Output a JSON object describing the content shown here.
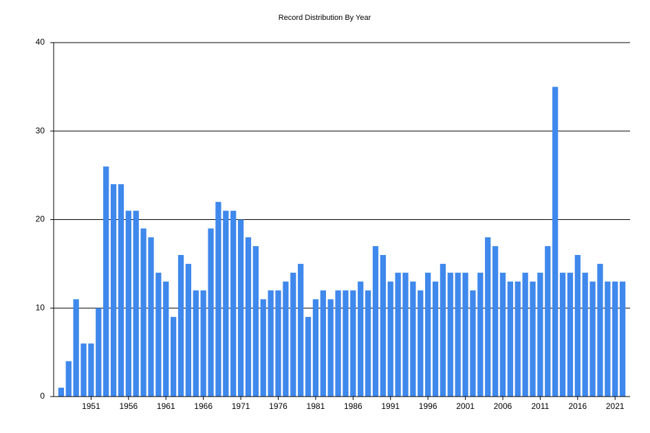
{
  "chart_data": {
    "type": "bar",
    "title": "Record Distribution By Year",
    "x": [
      1947,
      1948,
      1949,
      1950,
      1951,
      1952,
      1953,
      1954,
      1955,
      1956,
      1957,
      1958,
      1959,
      1960,
      1961,
      1962,
      1963,
      1964,
      1965,
      1966,
      1967,
      1968,
      1969,
      1970,
      1971,
      1972,
      1973,
      1974,
      1975,
      1976,
      1977,
      1978,
      1979,
      1980,
      1981,
      1982,
      1983,
      1984,
      1985,
      1986,
      1987,
      1988,
      1989,
      1990,
      1991,
      1992,
      1993,
      1994,
      1995,
      1996,
      1997,
      1998,
      1999,
      2000,
      2001,
      2002,
      2003,
      2004,
      2005,
      2006,
      2007,
      2008,
      2009,
      2010,
      2011,
      2012,
      2013,
      2014,
      2015,
      2016,
      2017,
      2018,
      2019,
      2020,
      2021,
      2022
    ],
    "values": [
      1,
      4,
      11,
      6,
      6,
      10,
      26,
      24,
      24,
      21,
      21,
      19,
      18,
      14,
      13,
      9,
      16,
      15,
      12,
      12,
      19,
      22,
      21,
      21,
      20,
      18,
      17,
      11,
      12,
      12,
      13,
      14,
      15,
      9,
      11,
      12,
      11,
      12,
      12,
      12,
      13,
      12,
      17,
      16,
      13,
      14,
      14,
      13,
      12,
      14,
      13,
      15,
      14,
      14,
      14,
      12,
      14,
      18,
      17,
      14,
      13,
      13,
      14,
      13,
      14,
      17,
      35,
      14,
      14,
      16,
      14,
      13,
      15,
      13,
      13,
      13
    ],
    "color": "#3f88ec",
    "xlim": [
      1946,
      2023
    ],
    "xticks": [
      1951,
      1956,
      1961,
      1966,
      1971,
      1976,
      1981,
      1986,
      1991,
      1996,
      2001,
      2006,
      2011,
      2016,
      2021
    ],
    "ylim": [
      0,
      40
    ],
    "yticks": [
      0,
      10,
      20,
      30,
      40
    ],
    "grid": true
  }
}
